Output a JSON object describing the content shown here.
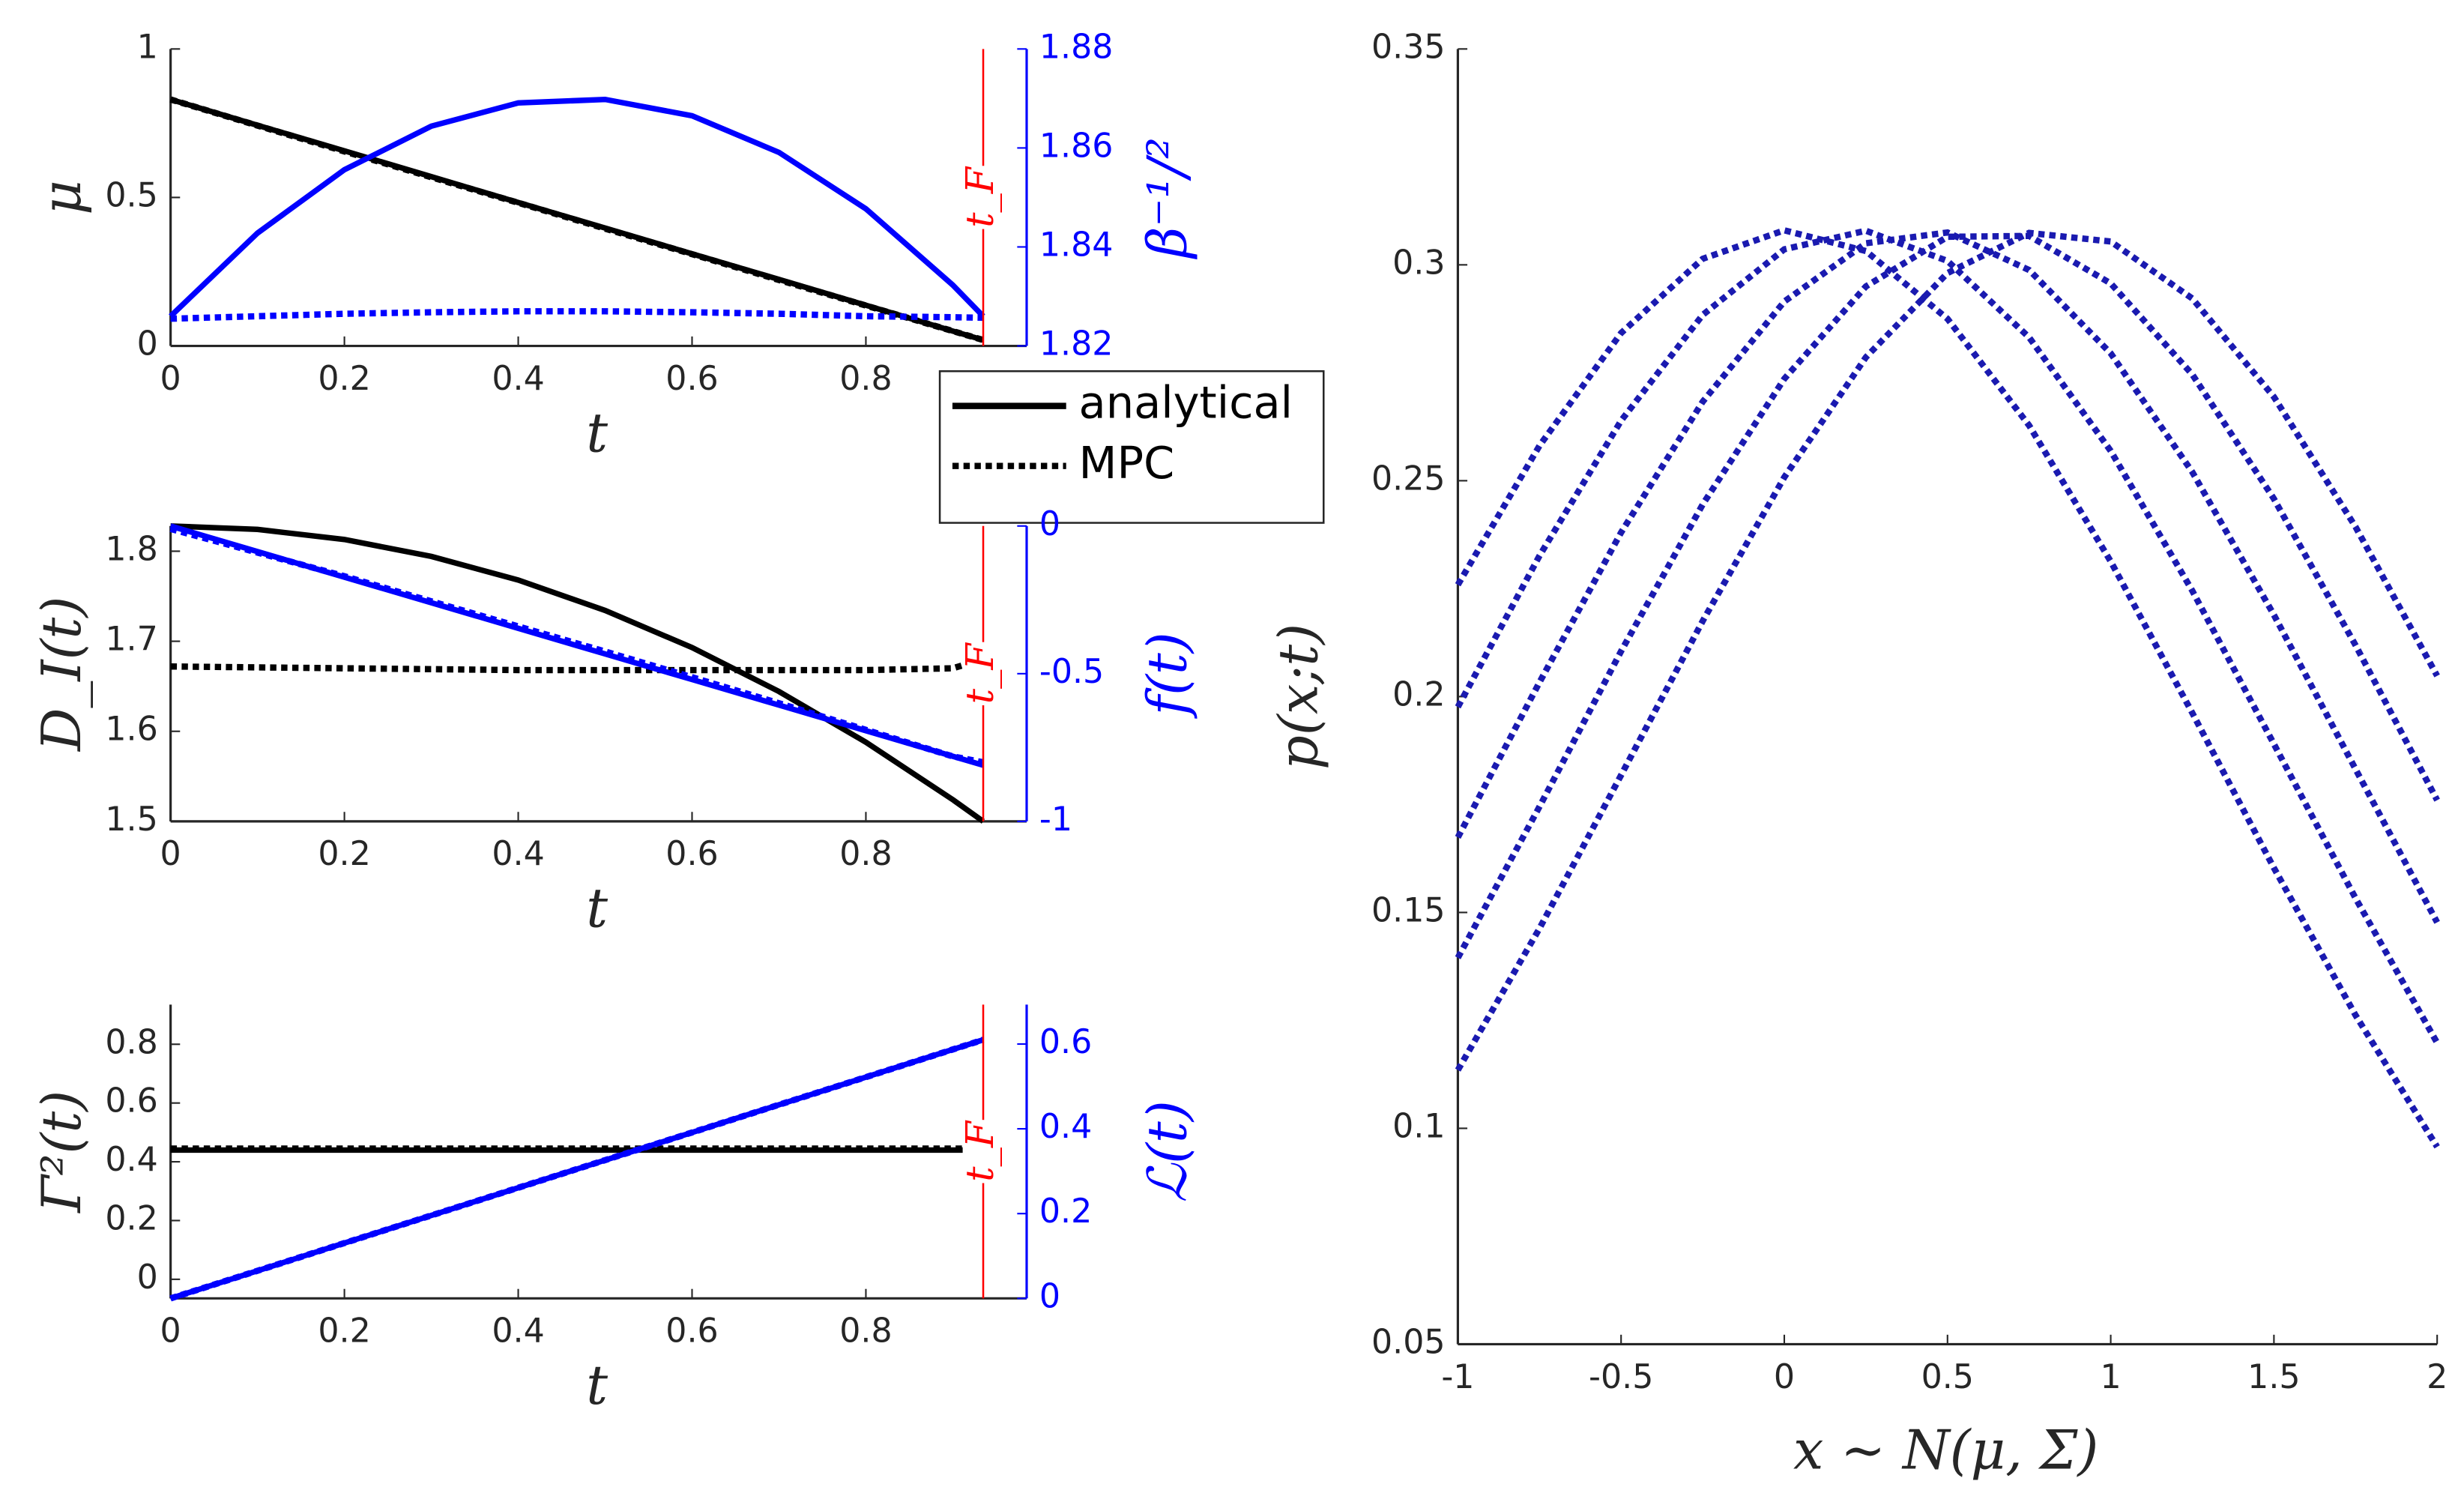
{
  "chart_data": [
    {
      "type": "line",
      "x": [
        0,
        0.1,
        0.2,
        0.3,
        0.4,
        0.5,
        0.6,
        0.7,
        0.8,
        0.9,
        0.935
      ],
      "xlim": [
        0,
        0.985
      ],
      "xticks": [
        0,
        0.2,
        0.4,
        0.6,
        0.8
      ],
      "xlabel": "t",
      "ylim": [
        0,
        1
      ],
      "yticks": [
        0,
        0.5,
        1
      ],
      "ylabel": "μ",
      "y2lim": [
        1.82,
        1.88
      ],
      "y2ticks": [
        1.82,
        1.84,
        1.86,
        1.88
      ],
      "y2label": "β⁻¹/²",
      "y2color": "#0000ff",
      "vline": 0.935,
      "vline_label": "t_F",
      "vline_color": "#ff0000",
      "grid": false,
      "legend": "lower right",
      "series": [
        {
          "name": "analytical",
          "color": "#000000",
          "dash": false,
          "values": [
            0.83,
            0.743,
            0.657,
            0.57,
            0.483,
            0.397,
            0.31,
            0.224,
            0.137,
            0.05,
            0.02
          ]
        },
        {
          "name": "MPC",
          "color": "#000000",
          "dash": true,
          "values": [
            0.83,
            0.742,
            0.655,
            0.568,
            0.482,
            0.395,
            0.309,
            0.222,
            0.136,
            0.05,
            0.02
          ]
        },
        {
          "color": "#0000ff",
          "dash": false,
          "axis": "y2",
          "values": [
            1.826,
            1.8428,
            1.8556,
            1.8644,
            1.8691,
            1.8698,
            1.8665,
            1.8591,
            1.8477,
            1.8323,
            1.826
          ]
        },
        {
          "color": "#0000ff",
          "dash": true,
          "axis": "y2",
          "values": [
            1.8255,
            1.826,
            1.8265,
            1.8268,
            1.827,
            1.827,
            1.8268,
            1.8265,
            1.826,
            1.8258,
            1.8257
          ]
        }
      ]
    },
    {
      "type": "line",
      "x": [
        0,
        0.1,
        0.2,
        0.3,
        0.4,
        0.5,
        0.6,
        0.7,
        0.8,
        0.9,
        0.935
      ],
      "xlim": [
        0,
        0.985
      ],
      "xticks": [
        0,
        0.2,
        0.4,
        0.6,
        0.8
      ],
      "xlabel": "t",
      "ylim": [
        1.5,
        1.828
      ],
      "yticks": [
        1.5,
        1.6,
        1.7,
        1.8
      ],
      "ylabel": "D_I(t)",
      "y2lim": [
        -1,
        0
      ],
      "y2ticks": [
        -1,
        -0.5,
        0
      ],
      "y2label": "f(t)",
      "y2color": "#0000ff",
      "vline": 0.935,
      "vline_label": "t_F",
      "vline_color": "#ff0000",
      "grid": false,
      "series": [
        {
          "color": "#000000",
          "dash": false,
          "values": [
            1.828,
            1.8242,
            1.813,
            1.7942,
            1.768,
            1.7342,
            1.693,
            1.6442,
            1.5879,
            1.5241,
            1.5
          ]
        },
        {
          "color": "#000000",
          "dash": true,
          "values": [
            1.672,
            1.671,
            1.67,
            1.669,
            1.668,
            1.668,
            1.668,
            1.668,
            1.668,
            1.67,
            1.68
          ]
        },
        {
          "color": "#0000ff",
          "dash": false,
          "axis": "y2",
          "values": [
            0,
            -0.0866,
            -0.1733,
            -0.2599,
            -0.3465,
            -0.4332,
            -0.5198,
            -0.6064,
            -0.693,
            -0.7797,
            -0.81
          ]
        },
        {
          "color": "#0000ff",
          "dash": true,
          "axis": "y2",
          "values": [
            -0.01,
            -0.09,
            -0.17,
            -0.255,
            -0.34,
            -0.425,
            -0.512,
            -0.6,
            -0.69,
            -0.78,
            -0.8
          ]
        }
      ]
    },
    {
      "type": "line",
      "x": [
        0,
        0.1,
        0.2,
        0.3,
        0.4,
        0.5,
        0.6,
        0.7,
        0.8,
        0.9,
        0.935
      ],
      "xlim": [
        0,
        0.985
      ],
      "xticks": [
        0,
        0.2,
        0.4,
        0.6,
        0.8
      ],
      "xlabel": "t",
      "ylim": [
        -0.065,
        0.935
      ],
      "yticks": [
        0,
        0.2,
        0.4,
        0.6,
        0.8
      ],
      "ylabel": "Γ²(t)",
      "y2lim": [
        0,
        0.693
      ],
      "y2ticks": [
        0,
        0.2,
        0.4,
        0.6
      ],
      "y2label": "ℒ(t)",
      "y2color": "#0000ff",
      "vline": 0.935,
      "vline_label": "t_F",
      "vline_color": "#ff0000",
      "grid": false,
      "series": [
        {
          "color": "#000000",
          "dash": false,
          "values": [
            0.44,
            0.44,
            0.44,
            0.44,
            0.44,
            0.44,
            0.44,
            0.44,
            0.44,
            0.44,
            0.44
          ]
        },
        {
          "color": "#000000",
          "dash": true,
          "values": [
            0.445,
            0.445,
            0.445,
            0.445,
            0.445,
            0.445,
            0.445,
            0.445,
            0.445,
            0.445,
            0.445
          ]
        },
        {
          "color": "#0000ff",
          "dash": false,
          "axis": "y2",
          "values": [
            0,
            0.0652,
            0.1305,
            0.1957,
            0.261,
            0.3262,
            0.3914,
            0.4567,
            0.5219,
            0.5872,
            0.61
          ]
        },
        {
          "color": "#0000ff",
          "dash": true,
          "axis": "y2",
          "values": [
            0,
            0.0652,
            0.1305,
            0.1957,
            0.261,
            0.3262,
            0.3914,
            0.4567,
            0.5219,
            0.5872,
            0.61
          ]
        }
      ]
    },
    {
      "type": "line",
      "x": [
        -1,
        -0.75,
        -0.5,
        -0.25,
        0,
        0.25,
        0.5,
        0.75,
        1,
        1.25,
        1.5,
        1.75,
        2
      ],
      "xlim": [
        -1,
        2
      ],
      "xticks": [
        -1,
        -0.5,
        0,
        0.5,
        1,
        1.5,
        2
      ],
      "xlabel": "x ∼ N(μ, Σ)",
      "ylim": [
        0.05,
        0.35
      ],
      "yticks": [
        0.05,
        0.1,
        0.15,
        0.2,
        0.25,
        0.3,
        0.35
      ],
      "ylabel": "p(x;t)",
      "grid": false,
      "series": [
        {
          "color": "#1a1ab0",
          "dash": true,
          "values": [
            0.1135,
            0.1463,
            0.1818,
            0.2175,
            0.2508,
            0.2786,
            0.2981,
            0.3074,
            0.3054,
            0.2922,
            0.2694,
            0.2393,
            0.2048
          ]
        },
        {
          "color": "#1a1ab0",
          "dash": true,
          "values": [
            0.1395,
            0.1745,
            0.2105,
            0.2445,
            0.2736,
            0.295,
            0.3065,
            0.3067,
            0.2957,
            0.2746,
            0.2458,
            0.2119,
            0.176
          ]
        },
        {
          "color": "#1a1ab0",
          "dash": true,
          "values": [
            0.1674,
            0.2033,
            0.238,
            0.2683,
            0.2915,
            0.305,
            0.3075,
            0.2988,
            0.2795,
            0.252,
            0.2189,
            0.1832,
            0.1477
          ]
        },
        {
          "color": "#1a1ab0",
          "dash": true,
          "values": [
            0.1976,
            0.2326,
            0.2639,
            0.2884,
            0.3036,
            0.3079,
            0.3009,
            0.2832,
            0.2569,
            0.2245,
            0.189,
            0.1533,
            0.1198
          ]
        },
        {
          "color": "#1a1ab0",
          "dash": true,
          "values": [
            0.2259,
            0.2581,
            0.2842,
            0.3014,
            0.308,
            0.3032,
            0.2875,
            0.2628,
            0.2313,
            0.1962,
            0.1603,
            0.1262,
            0.0957
          ]
        }
      ]
    }
  ]
}
